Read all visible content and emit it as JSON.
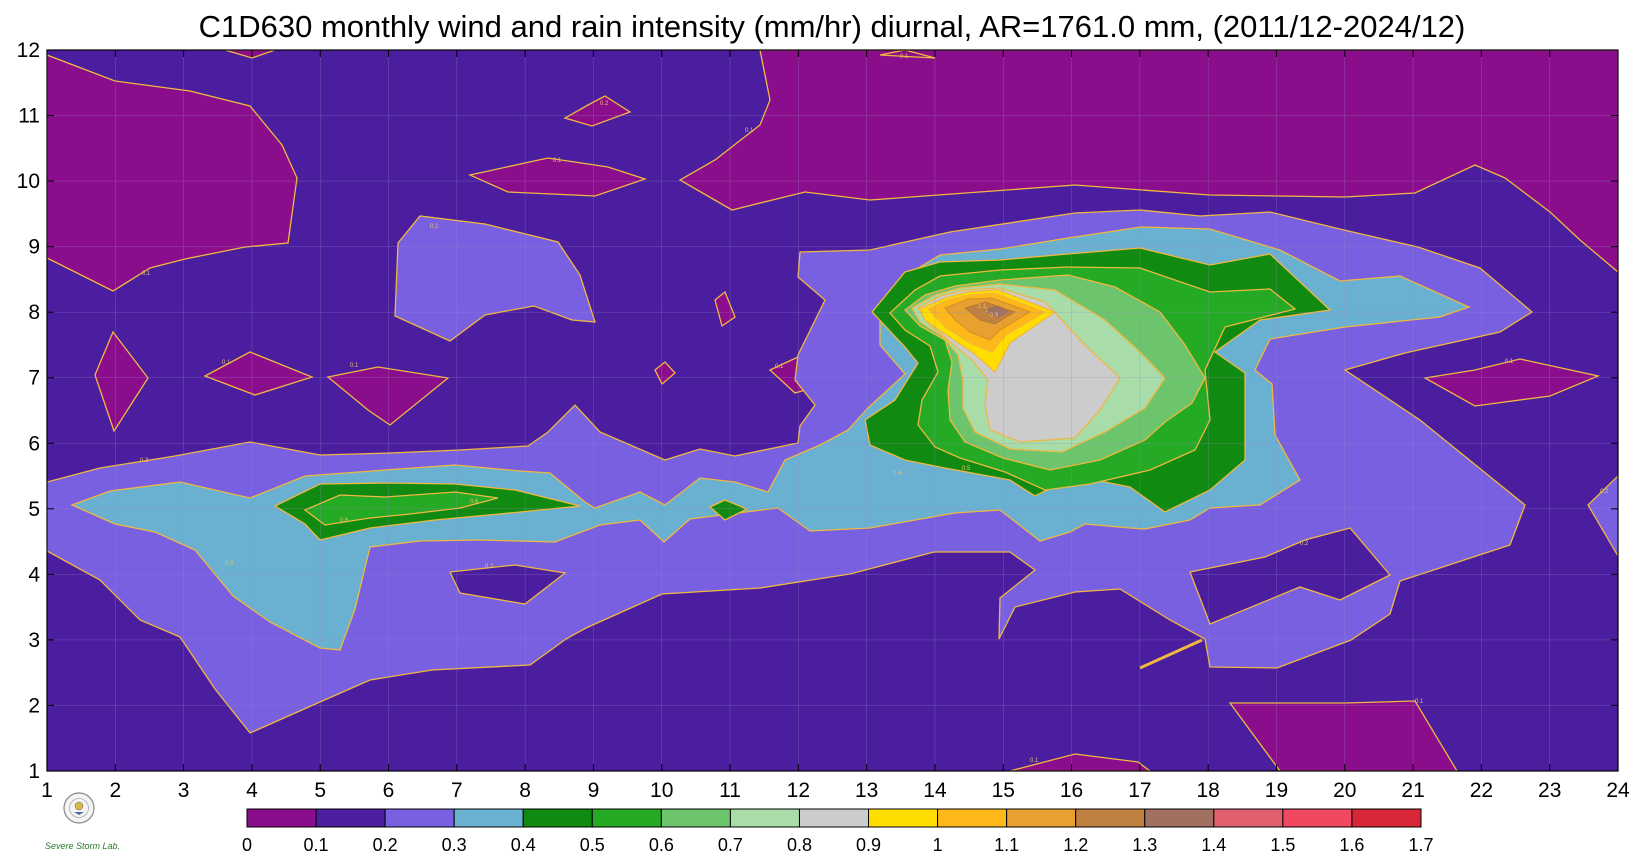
{
  "chart_data": {
    "type": "contour",
    "title": "C1D630 monthly wind and rain intensity (mm/hr) diurnal, AR=1761.0 mm, (2011/12-2024/12)",
    "x_ticks": [
      "1",
      "2",
      "3",
      "4",
      "5",
      "6",
      "7",
      "8",
      "9",
      "10",
      "11",
      "12",
      "13",
      "14",
      "15",
      "16",
      "17",
      "18",
      "19",
      "20",
      "21",
      "22",
      "23",
      "24"
    ],
    "y_ticks": [
      "1",
      "2",
      "3",
      "4",
      "5",
      "6",
      "7",
      "8",
      "9",
      "10",
      "11",
      "12"
    ],
    "xlim": [
      1,
      24
    ],
    "ylim": [
      1,
      12
    ],
    "grid": true,
    "colorbar": {
      "ticks": [
        "0",
        "0.1",
        "0.2",
        "0.3",
        "0.4",
        "0.5",
        "0.6",
        "0.7",
        "0.8",
        "0.9",
        "1",
        "1.1",
        "1.2",
        "1.3",
        "1.4",
        "1.5",
        "1.6",
        "1.7"
      ],
      "colors": [
        "#8a0e8c",
        "#4a1e9e",
        "#7860e0",
        "#6ab0d0",
        "#108a10",
        "#24aa24",
        "#6cc46c",
        "#a8dca8",
        "#cccccc",
        "#ffdd00",
        "#ffb81a",
        "#e8a030",
        "#c08040",
        "#a07060",
        "#e06070",
        "#f04860",
        "#d82838"
      ]
    },
    "contour_labels": [
      "0.1",
      "0.2",
      "0.3",
      "0.4",
      "0.5",
      "0.6",
      "0.7",
      "0.8",
      "0.9",
      "1",
      "1.1"
    ],
    "logo_text": "Severe Storm Lab."
  }
}
